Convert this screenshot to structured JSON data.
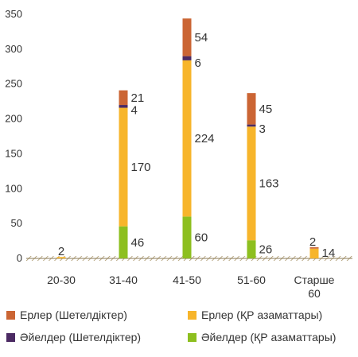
{
  "chart_data": {
    "type": "bar",
    "stacked": true,
    "categories": [
      "20-30",
      "31-40",
      "41-50",
      "51-60",
      "Старше 60"
    ],
    "series": [
      {
        "name": "Әйелдер (ҚР азаматтары)",
        "color": "#8dbf1f",
        "values": [
          0,
          46,
          60,
          26,
          0
        ]
      },
      {
        "name": "Ерлер (ҚР азаматтары)",
        "color": "#f7b52b",
        "values": [
          2,
          170,
          224,
          163,
          14
        ]
      },
      {
        "name": "Әйелдер (Шетелдіктер)",
        "color": "#4b2a63",
        "values": [
          0,
          4,
          6,
          3,
          0
        ]
      },
      {
        "name": "Ерлер (Шетелдіктер)",
        "color": "#cb6534",
        "values": [
          0,
          21,
          54,
          45,
          2
        ]
      }
    ],
    "ylim": [
      0,
      350
    ],
    "yticks": [
      0,
      50,
      100,
      150,
      200,
      250,
      300,
      350
    ],
    "grid": false,
    "legend_position": "bottom",
    "legend_order": [
      "Ерлер (Шетелдіктер)",
      "Ерлер (ҚР азаматтары)",
      "Әйелдер (Шетелдіктер)",
      "Әйелдер (ҚР азаматтары)"
    ],
    "bar_labels": [
      [
        {
          "series": 1,
          "text": "2"
        }
      ],
      [
        {
          "series": 0,
          "text": "46"
        },
        {
          "series": 1,
          "text": "170"
        },
        {
          "series": 2,
          "text": "4"
        },
        {
          "series": 3,
          "text": "21"
        }
      ],
      [
        {
          "series": 0,
          "text": "60"
        },
        {
          "series": 1,
          "text": "224"
        },
        {
          "series": 2,
          "text": "6"
        },
        {
          "series": 3,
          "text": "54"
        }
      ],
      [
        {
          "series": 0,
          "text": "26"
        },
        {
          "series": 1,
          "text": "163"
        },
        {
          "series": 2,
          "text": "3"
        },
        {
          "series": 3,
          "text": "45"
        }
      ],
      [
        {
          "series": 1,
          "text": "14"
        },
        {
          "series": 3,
          "text": "2"
        }
      ]
    ]
  }
}
